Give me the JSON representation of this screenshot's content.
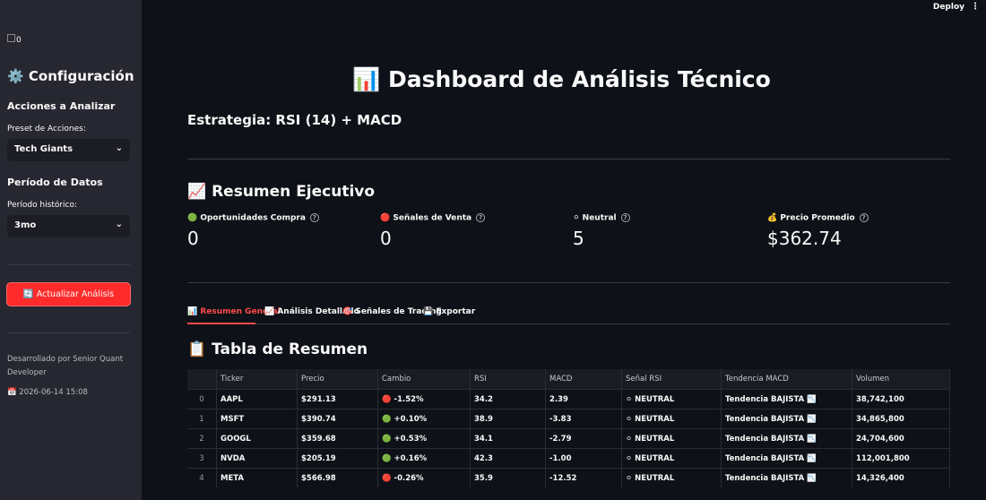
{
  "header": {
    "deploy": "Deploy"
  },
  "sidebar": {
    "logo_alt": "0",
    "title": "⚙️ Configuración",
    "section_stocks": "Acciones a Analizar",
    "preset_label": "Preset de Acciones:",
    "preset_value": "Tech Giants",
    "section_period": "Período de Datos",
    "period_label": "Período histórico:",
    "period_value": "3mo",
    "button": "🔄 Actualizar Análisis",
    "footer": "Desarrollado por Senior Quant Developer",
    "timestamp": "📅 2026-06-14 15:08"
  },
  "main": {
    "title": "📊 Dashboard de Análisis Técnico",
    "subtitle": "Estrategia: RSI (14) + MACD",
    "summary_title": "📈 Resumen Ejecutivo",
    "metrics": [
      {
        "label": "🟢 Oportunidades Compra",
        "value": "0"
      },
      {
        "label": "🔴 Señales de Venta",
        "value": "0"
      },
      {
        "label": "⚪ Neutral",
        "value": "5"
      },
      {
        "label": "💰 Precio Promedio",
        "value": "$362.74"
      }
    ],
    "tabs": [
      "📊 Resumen General",
      "📈 Análisis Detallado",
      "🎯 Señales de Trading",
      "💾 Exportar"
    ],
    "table_title": "📋 Tabla de Resumen",
    "table": {
      "columns": [
        "",
        "Ticker",
        "Precio",
        "Cambio",
        "RSI",
        "MACD",
        "Señal RSI",
        "Tendencia MACD",
        "Volumen"
      ],
      "rows": [
        [
          "0",
          "AAPL",
          "$291.13",
          "🔴 -1.52%",
          "34.2",
          "2.39",
          "⚪ NEUTRAL",
          "Tendencia BAJISTA 📉",
          "38,742,100"
        ],
        [
          "1",
          "MSFT",
          "$390.74",
          "🟢 +0.10%",
          "38.9",
          "-3.83",
          "⚪ NEUTRAL",
          "Tendencia BAJISTA 📉",
          "34,865,800"
        ],
        [
          "2",
          "GOOGL",
          "$359.68",
          "🟢 +0.53%",
          "34.1",
          "-2.79",
          "⚪ NEUTRAL",
          "Tendencia BAJISTA 📉",
          "24,704,600"
        ],
        [
          "3",
          "NVDA",
          "$205.19",
          "🟢 +0.16%",
          "42.3",
          "-1.00",
          "⚪ NEUTRAL",
          "Tendencia BAJISTA 📉",
          "112,001,800"
        ],
        [
          "4",
          "META",
          "$566.98",
          "🔴 -0.26%",
          "35.9",
          "-12.52",
          "⚪ NEUTRAL",
          "Tendencia BAJISTA 📉",
          "14,326,400"
        ]
      ]
    }
  }
}
